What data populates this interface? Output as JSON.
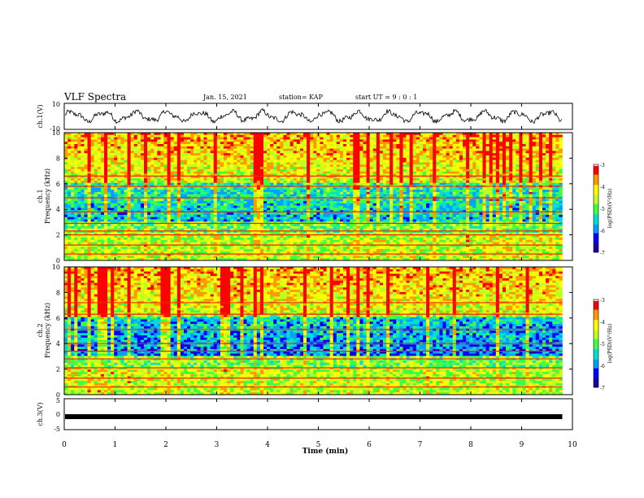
{
  "header": {
    "title": "VLF Spectra",
    "date": "Jan. 15, 2021",
    "station": "station= KAP",
    "start": "start  UT =  9 : 0  : 1"
  },
  "colors": {
    "colormap": [
      "#1a00a0",
      "#0000ff",
      "#00a0ff",
      "#00e0d0",
      "#40ff40",
      "#c0ff20",
      "#ffff00",
      "#ff9900",
      "#ff0000",
      "#ffffff"
    ],
    "waveform": "#000000"
  },
  "chart_data": [
    {
      "type": "line",
      "ylabel": "ch.1(V)",
      "xlim": [
        0,
        10
      ],
      "ylim": [
        -10,
        10
      ],
      "yticks": [
        "10",
        "-10"
      ],
      "data_end_min": 9.8,
      "waveform": "oscillating voltage trace between about -5 and +5 V"
    },
    {
      "type": "heatmap",
      "ylabel": "ch.1\nFrequency (kHz)",
      "xlim": [
        0,
        10
      ],
      "ylim": [
        0,
        10
      ],
      "yticks": [
        "0",
        "2",
        "4",
        "6",
        "8",
        "10"
      ],
      "colorbar": {
        "label": "log(PSD)(V²/Hz)",
        "range": [
          -7,
          -3
        ],
        "ticks": [
          "-3",
          "-4",
          "-5",
          "-6",
          "-7"
        ]
      }
    },
    {
      "type": "heatmap",
      "ylabel": "ch.2\nFrequency (kHz)",
      "xlim": [
        0,
        10
      ],
      "ylim": [
        0,
        10
      ],
      "yticks": [
        "0",
        "2",
        "4",
        "6",
        "8",
        "10"
      ],
      "colorbar": {
        "label": "log(PSD)(V²/Hz)",
        "range": [
          -7,
          -3
        ],
        "ticks": [
          "-3",
          "-4",
          "-5",
          "-6",
          "-7"
        ]
      }
    },
    {
      "type": "line",
      "ylabel": "ch.3(V)",
      "xlim": [
        0,
        10
      ],
      "ylim": [
        -5,
        5
      ],
      "yticks": [
        "5",
        "0",
        "-5"
      ],
      "level": -0.8,
      "xlabel": "Time (min)",
      "xticks": [
        "0",
        "1",
        "2",
        "3",
        "4",
        "5",
        "6",
        "7",
        "8",
        "9",
        "10"
      ]
    }
  ]
}
